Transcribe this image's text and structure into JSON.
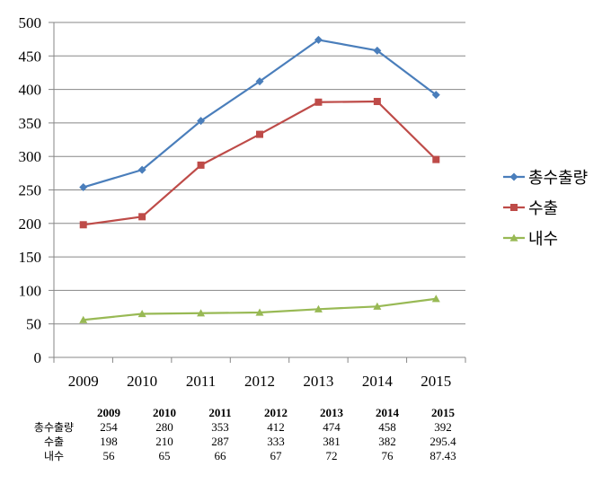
{
  "chart_data": {
    "type": "line",
    "categories": [
      "2009",
      "2010",
      "2011",
      "2012",
      "2013",
      "2014",
      "2015"
    ],
    "ylim": [
      0,
      500
    ],
    "yticks": [
      0,
      50,
      100,
      150,
      200,
      250,
      300,
      350,
      400,
      450,
      500
    ],
    "grid": true,
    "legend_position": "right",
    "series": [
      {
        "name": "총수출량",
        "color": "#4a7ebb",
        "marker": "diamond",
        "values": [
          254,
          280,
          353,
          412,
          474,
          458,
          392
        ]
      },
      {
        "name": "수출",
        "color": "#be4b48",
        "marker": "square",
        "values": [
          198,
          210,
          287,
          333,
          381,
          382,
          295.4
        ]
      },
      {
        "name": "내수",
        "color": "#98b954",
        "marker": "triangle",
        "values": [
          56,
          65,
          66,
          67,
          72,
          76,
          87.43
        ]
      }
    ],
    "table": {
      "years": [
        "2009",
        "2010",
        "2011",
        "2012",
        "2013",
        "2014",
        "2015"
      ],
      "rows": [
        {
          "label": "총수출량",
          "cells": [
            "254",
            "280",
            "353",
            "412",
            "474",
            "458",
            "392"
          ]
        },
        {
          "label": "수출",
          "cells": [
            "198",
            "210",
            "287",
            "333",
            "381",
            "382",
            "295.4"
          ]
        },
        {
          "label": "내수",
          "cells": [
            "56",
            "65",
            "66",
            "67",
            "72",
            "76",
            "87.43"
          ]
        }
      ]
    }
  }
}
